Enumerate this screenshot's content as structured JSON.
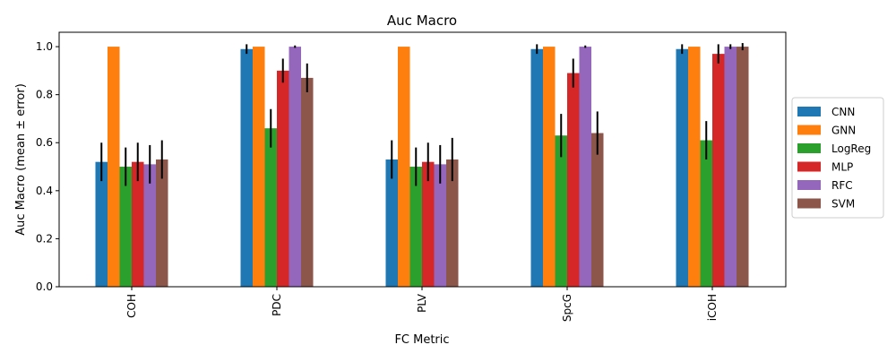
{
  "chart_data": {
    "type": "bar",
    "title": "Auc Macro",
    "xlabel": "FC Metric",
    "ylabel": "Auc Macro (mean ± error)",
    "ylim": [
      0,
      1.06
    ],
    "yticks": [
      "0.0",
      "0.2",
      "0.4",
      "0.6",
      "0.8",
      "1.0"
    ],
    "ytick_values": [
      0,
      0.2,
      0.4,
      0.6,
      0.8,
      1.0
    ],
    "categories": [
      "COH",
      "PDC",
      "PLV",
      "SpcG",
      "iCOH"
    ],
    "grid": false,
    "legend_position": "center-right-outside",
    "series": [
      {
        "name": "CNN",
        "color": "#1f77b4",
        "values": [
          0.52,
          0.99,
          0.53,
          0.99,
          0.99
        ],
        "errors": [
          0.08,
          0.02,
          0.08,
          0.02,
          0.02
        ]
      },
      {
        "name": "GNN",
        "color": "#ff7f0e",
        "values": [
          1.0,
          1.0,
          1.0,
          1.0,
          1.0
        ],
        "errors": [
          0.0,
          0.0,
          0.0,
          0.0,
          0.0
        ]
      },
      {
        "name": "LogReg",
        "color": "#2ca02c",
        "values": [
          0.5,
          0.66,
          0.5,
          0.63,
          0.61
        ],
        "errors": [
          0.08,
          0.08,
          0.08,
          0.09,
          0.08
        ]
      },
      {
        "name": "MLP",
        "color": "#d62728",
        "values": [
          0.52,
          0.9,
          0.52,
          0.89,
          0.97
        ],
        "errors": [
          0.08,
          0.05,
          0.08,
          0.06,
          0.04
        ]
      },
      {
        "name": "RFC",
        "color": "#9467bd",
        "values": [
          0.51,
          1.0,
          0.51,
          1.0,
          1.0
        ],
        "errors": [
          0.08,
          0.005,
          0.08,
          0.005,
          0.01
        ]
      },
      {
        "name": "SVM",
        "color": "#8c564b",
        "values": [
          0.53,
          0.87,
          0.53,
          0.64,
          1.0
        ],
        "errors": [
          0.08,
          0.06,
          0.09,
          0.09,
          0.015
        ]
      }
    ]
  }
}
